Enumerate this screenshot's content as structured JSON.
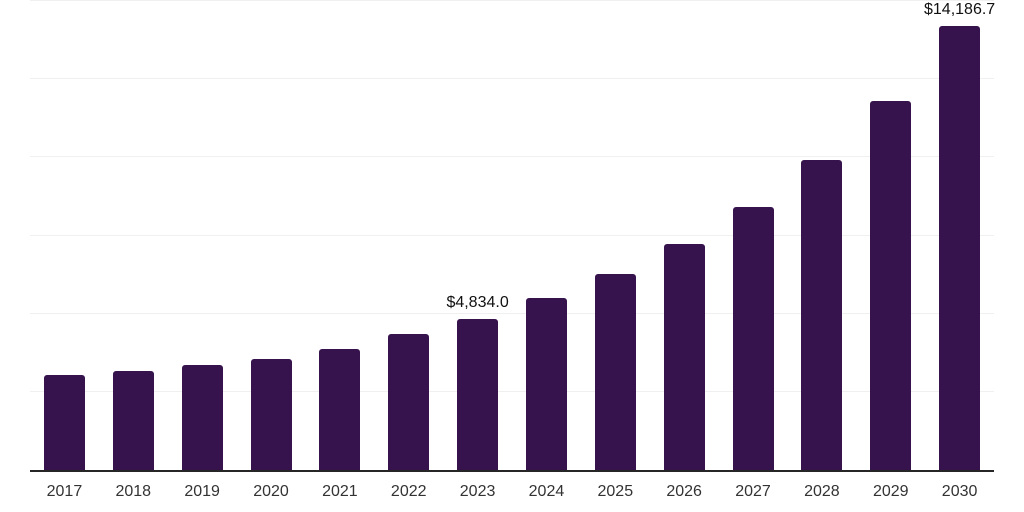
{
  "chart_data": {
    "type": "bar",
    "title": "",
    "xlabel": "",
    "ylabel": "",
    "categories": [
      "2017",
      "2018",
      "2019",
      "2020",
      "2021",
      "2022",
      "2023",
      "2024",
      "2025",
      "2026",
      "2027",
      "2028",
      "2029",
      "2030"
    ],
    "values": [
      3040,
      3180,
      3360,
      3540,
      3870,
      4340,
      4834.0,
      5490,
      6270,
      7220,
      8400,
      9920,
      11790,
      14186.7
    ],
    "data_labels": {
      "2023": "$4,834.0",
      "2030": "$14,186.7"
    },
    "ylim": [
      0,
      15000
    ],
    "gridline_step": 2500,
    "grid": "horizontal",
    "y_tick_labels_visible": false,
    "legend": "none",
    "colors": {
      "bar": "#36134d",
      "axis_line": "#262626",
      "gridline": "#f0f0f0",
      "data_label": "#111111",
      "tick_label": "#333333",
      "background": "#ffffff"
    }
  }
}
